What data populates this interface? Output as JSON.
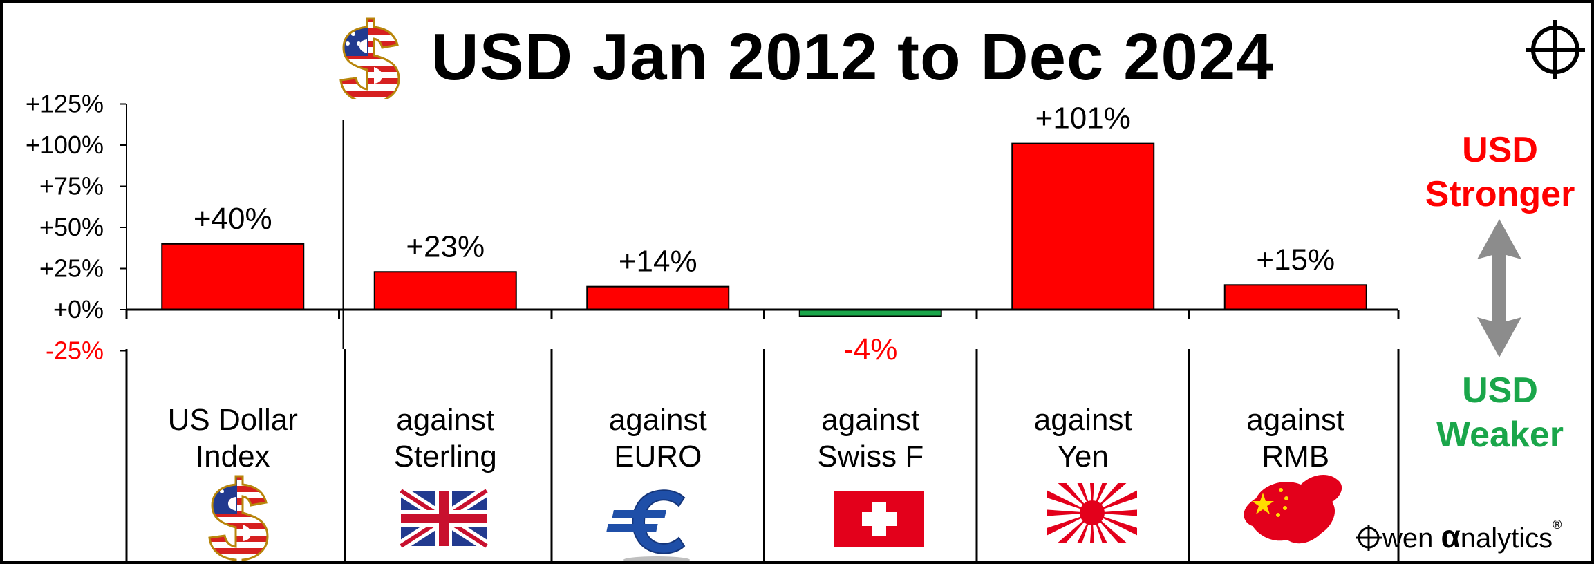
{
  "title": "USD Jan 2012 to Dec 2024",
  "legend": {
    "stronger_line1": "USD",
    "stronger_line2": "Stronger",
    "weaker_line1": "USD",
    "weaker_line2": "Weaker"
  },
  "logo": {
    "prefix": "wen ",
    "alpha": "α",
    "suffix": "nalytics",
    "mark": "®"
  },
  "icons": [
    "crosshair-icon",
    "dollar-flag-icon",
    "union-jack-flag-icon",
    "euro-icon",
    "swiss-flag-icon",
    "rising-sun-flag-icon",
    "china-map-flag-icon",
    "double-arrow-icon"
  ],
  "colors": {
    "positive": "#ff0000",
    "negative": "#1aa64a",
    "positive_label": "#000000",
    "negative_label": "#ff0000"
  },
  "chart_data": {
    "type": "bar",
    "title": "USD Jan 2012 to Dec 2024",
    "xlabel": "",
    "ylabel": "",
    "ylim": [
      -25,
      125
    ],
    "yticks": [
      -25,
      0,
      25,
      50,
      75,
      100,
      125
    ],
    "ytick_labels": [
      "-25%",
      "+0%",
      "+25%",
      "+50%",
      "+75%",
      "+100%",
      "+125%"
    ],
    "grid": false,
    "categories": [
      [
        "US Dollar",
        "Index"
      ],
      [
        "against",
        "Sterling"
      ],
      [
        "against",
        "EURO"
      ],
      [
        "against",
        "Swiss F"
      ],
      [
        "against",
        "Yen"
      ],
      [
        "against",
        "RMB"
      ]
    ],
    "values": [
      40,
      23,
      14,
      -4,
      101,
      15
    ],
    "data_labels": [
      "+40%",
      "+23%",
      "+14%",
      "-4%",
      "+101%",
      "+15%"
    ]
  }
}
